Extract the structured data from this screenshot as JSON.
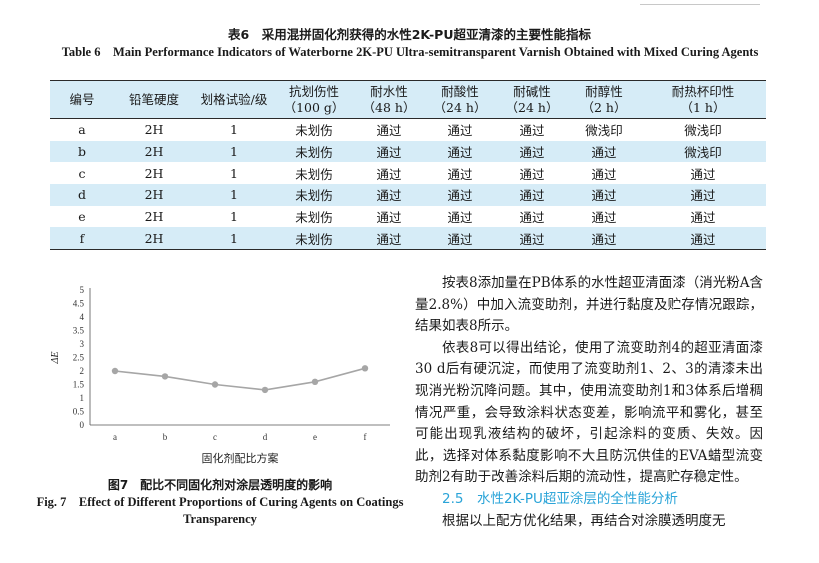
{
  "table": {
    "caption_cn": "表6　采用混拼固化剂获得的水性2K-PU超亚清漆的主要性能指标",
    "caption_en": "Table 6　Main Performance Indicators of Waterborne 2K-PU Ultra-semitransparent Varnish Obtained with Mixed Curing Agents",
    "headers": [
      {
        "line1": "编号",
        "line2": ""
      },
      {
        "line1": "铅笔硬度",
        "line2": ""
      },
      {
        "line1": "划格试验/级",
        "line2": ""
      },
      {
        "line1": "抗划伤性",
        "line2": "（100 g）"
      },
      {
        "line1": "耐水性",
        "line2": "（48 h）"
      },
      {
        "line1": "耐酸性",
        "line2": "（24 h）"
      },
      {
        "line1": "耐碱性",
        "line2": "（24 h）"
      },
      {
        "line1": "耐醇性",
        "line2": "（2 h）"
      },
      {
        "line1": "耐热杯印性",
        "line2": "（1 h）"
      }
    ],
    "rows": [
      [
        "a",
        "2H",
        "1",
        "未划伤",
        "通过",
        "通过",
        "通过",
        "微浅印",
        "微浅印"
      ],
      [
        "b",
        "2H",
        "1",
        "未划伤",
        "通过",
        "通过",
        "通过",
        "通过",
        "微浅印"
      ],
      [
        "c",
        "2H",
        "1",
        "未划伤",
        "通过",
        "通过",
        "通过",
        "通过",
        "通过"
      ],
      [
        "d",
        "2H",
        "1",
        "未划伤",
        "通过",
        "通过",
        "通过",
        "通过",
        "通过"
      ],
      [
        "e",
        "2H",
        "1",
        "未划伤",
        "通过",
        "通过",
        "通过",
        "通过",
        "通过"
      ],
      [
        "f",
        "2H",
        "1",
        "未划伤",
        "通过",
        "通过",
        "通过",
        "通过",
        "通过"
      ]
    ]
  },
  "figure": {
    "caption_cn": "图7　配比不同固化剂对涂层透明度的影响",
    "caption_en": "Fig. 7　Effect of Different Proportions of Curing Agents on Coatings Transparency"
  },
  "chart_data": {
    "type": "line",
    "categories": [
      "a",
      "b",
      "c",
      "d",
      "e",
      "f"
    ],
    "series": [
      {
        "values": [
          2.0,
          1.8,
          1.5,
          1.3,
          1.6,
          2.1
        ],
        "color": "#a6a6a6"
      }
    ],
    "xlabel": "固化剂配比方案",
    "ylabel": "ΔE",
    "ylim": [
      0,
      5
    ],
    "yticks": [
      "0",
      "0.5",
      "1",
      "1.5",
      "2",
      "2.5",
      "3",
      "3.5",
      "4",
      "4.5",
      "5"
    ],
    "grid": false,
    "legend": false
  },
  "body": {
    "paragraphs": [
      "按表8添加量在PB体系的水性超亚清面漆（消光粉A含量2.8%）中加入流变助剂，并进行黏度及贮存情况跟踪，结果如表8所示。",
      "依表8可以得出结论，使用了流变助剂4的超亚清面漆30 d后有硬沉淀，而使用了流变助剂1、2、3的清漆未出现消光粉沉降问题。其中，使用流变助剂1和3体系后增稠情况严重，会导致涂料状态变差，影响流平和雾化，甚至可能出现乳液结构的破坏，引起涂料的变质、失效。因此，选择对体系黏度影响不大且防沉供佳的EVA蜡型流变助剂2有助于改善涂料后期的流动性，提高贮存稳定性。"
    ],
    "section_heading": "2.5　水性2K-PU超亚涂层的全性能分析",
    "last_paragraph": "根据以上配方优化结果，再结合对涂膜透明度无"
  },
  "colors": {
    "table_band": "#d6ecf7",
    "heading_accent": "#2aa4d8",
    "series": "#a6a6a6"
  }
}
